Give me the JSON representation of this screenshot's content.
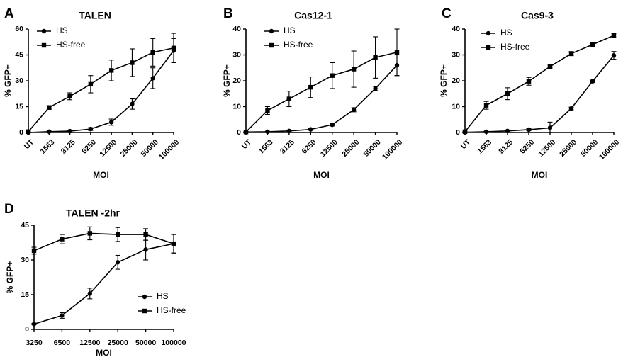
{
  "figure": {
    "panels": [
      {
        "letter": "A",
        "title": "TALEN",
        "xlabel": "MOI",
        "ylabel": "% GFP+"
      },
      {
        "letter": "B",
        "title": "Cas12-1",
        "xlabel": "MOI",
        "ylabel": "% GFP+"
      },
      {
        "letter": "C",
        "title": "Cas9-3",
        "xlabel": "MOI",
        "ylabel": "% GFP+"
      },
      {
        "letter": "D",
        "title": "TALEN -2hr",
        "xlabel": "MOI",
        "ylabel": "% GFP+"
      }
    ]
  },
  "chart_data": [
    {
      "type": "line",
      "title": "TALEN",
      "xlabel": "MOI",
      "ylabel": "% GFP+",
      "ylim": [
        0,
        60
      ],
      "yticks": [
        0,
        15,
        30,
        45,
        60
      ],
      "categories": [
        "UT",
        "1563",
        "3125",
        "6250",
        "12500",
        "25000",
        "50000",
        "100000"
      ],
      "legend_position": "top-left",
      "series": [
        {
          "name": "HS",
          "marker": "circle",
          "values": [
            0,
            0.5,
            0.8,
            2,
            6,
            16.5,
            31.5,
            47.5
          ],
          "errors": [
            0.3,
            0.3,
            0.5,
            0.8,
            1.8,
            3,
            6,
            7
          ]
        },
        {
          "name": "HS-free",
          "marker": "square",
          "values": [
            0.5,
            14.5,
            21,
            28,
            36,
            40.5,
            46.5,
            49
          ],
          "errors": [
            0.3,
            1,
            2,
            5,
            6,
            8,
            8,
            8.5
          ]
        }
      ]
    },
    {
      "type": "line",
      "title": "Cas12-1",
      "xlabel": "MOI",
      "ylabel": "% GFP+",
      "ylim": [
        0,
        40
      ],
      "yticks": [
        0,
        10,
        20,
        30,
        40
      ],
      "categories": [
        "UT",
        "1563",
        "3125",
        "6250",
        "12500",
        "25000",
        "50000",
        "100000"
      ],
      "legend_position": "top-left",
      "series": [
        {
          "name": "HS",
          "marker": "circle",
          "values": [
            0.2,
            0.3,
            0.6,
            1.2,
            3,
            8.8,
            17,
            26
          ],
          "errors": [
            0.2,
            0.2,
            0.2,
            0.3,
            0.5,
            0.8,
            0.8,
            4
          ]
        },
        {
          "name": "HS-free",
          "marker": "square",
          "values": [
            0.2,
            8.5,
            13,
            17.5,
            22,
            24.5,
            29,
            31
          ],
          "errors": [
            0.2,
            1.5,
            3,
            4,
            5,
            7,
            8,
            9
          ]
        }
      ]
    },
    {
      "type": "line",
      "title": "Cas9-3",
      "xlabel": "MOI",
      "ylabel": "% GFP+",
      "ylim": [
        0,
        40
      ],
      "yticks": [
        0,
        10,
        20,
        30,
        40
      ],
      "categories": [
        "UT",
        "1563",
        "3125",
        "6250",
        "12500",
        "25000",
        "50000",
        "100000"
      ],
      "legend_position": "top-left",
      "series": [
        {
          "name": "HS",
          "marker": "circle",
          "values": [
            0.1,
            0.3,
            0.6,
            1.1,
            1.8,
            9.3,
            19.8,
            29.8
          ],
          "errors": [
            0.1,
            0.2,
            0.2,
            0.4,
            2.2,
            0.5,
            0.5,
            1.5
          ]
        },
        {
          "name": "HS-free",
          "marker": "square",
          "values": [
            0.3,
            10.5,
            15,
            19.8,
            25.5,
            30.5,
            34,
            37.5
          ],
          "errors": [
            0.2,
            1.5,
            2.3,
            1.5,
            0.5,
            0.8,
            0.5,
            0.8
          ]
        }
      ]
    },
    {
      "type": "line",
      "title": "TALEN -2hr",
      "xlabel": "MOI",
      "ylabel": "% GFP+",
      "ylim": [
        0,
        45
      ],
      "yticks": [
        0,
        15,
        30,
        45
      ],
      "categories": [
        "3250",
        "6500",
        "12500",
        "25000",
        "50000",
        "100000"
      ],
      "legend_position": "bottom-center",
      "series": [
        {
          "name": "HS",
          "marker": "circle",
          "values": [
            2.3,
            6,
            15.5,
            29,
            34.5,
            37
          ],
          "errors": [
            0.3,
            1.2,
            2.3,
            3,
            4.5,
            4
          ]
        },
        {
          "name": "HS-free",
          "marker": "square",
          "values": [
            34,
            39,
            41.5,
            41,
            41,
            37
          ],
          "errors": [
            1.5,
            2,
            2.8,
            3,
            2.5,
            4
          ]
        }
      ]
    }
  ]
}
